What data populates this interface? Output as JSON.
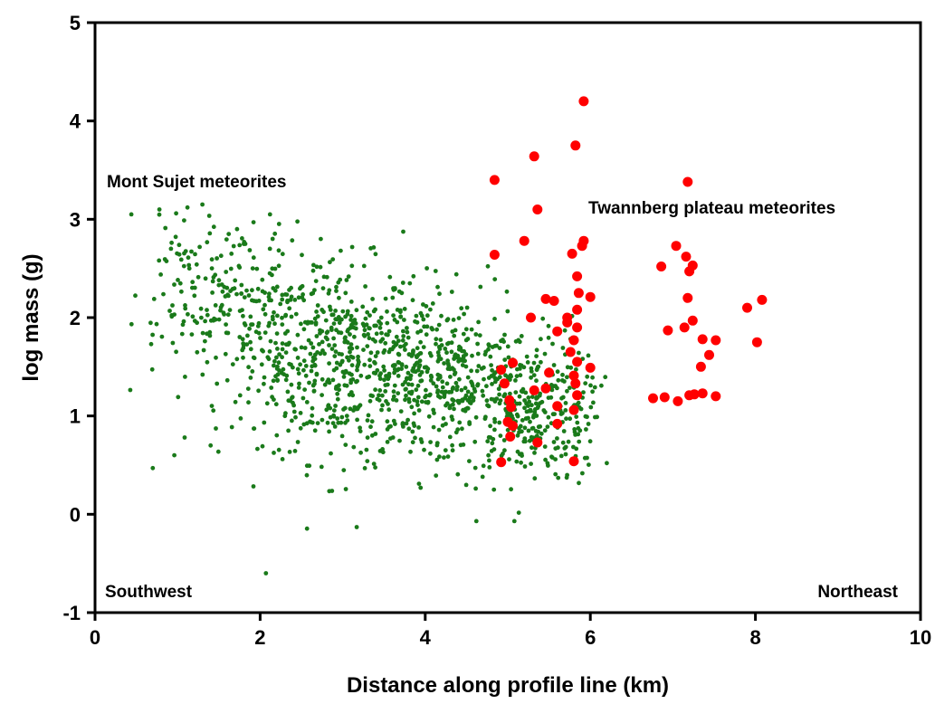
{
  "chart_data": {
    "type": "scatter",
    "title": "",
    "xlabel": "Distance along profile line (km)",
    "ylabel": "log mass (g)",
    "xlim": [
      0,
      10
    ],
    "ylim": [
      -1,
      5
    ],
    "xticks": [
      0,
      2,
      4,
      6,
      8,
      10
    ],
    "yticks": [
      -1,
      0,
      1,
      2,
      3,
      4,
      5
    ],
    "grid": false,
    "colors": {
      "mont_sujet": "#1a7a1a",
      "twannberg": "#ff0000"
    },
    "annotations": {
      "mont_sujet": "Mont Sujet meteorites",
      "twannberg": "Twannberg plateau meteorites",
      "southwest": "Southwest",
      "northeast": "Northeast"
    },
    "series": [
      {
        "key": "twannberg",
        "marker": "large-dot",
        "points": [
          [
            4.84,
            3.4
          ],
          [
            4.84,
            2.64
          ],
          [
            4.92,
            1.47
          ],
          [
            4.96,
            1.33
          ],
          [
            4.92,
            0.53
          ],
          [
            5.02,
            1.16
          ],
          [
            5.04,
            1.09
          ],
          [
            5.0,
            0.94
          ],
          [
            5.03,
            0.79
          ],
          [
            5.06,
            0.9
          ],
          [
            5.06,
            1.54
          ],
          [
            5.2,
            2.78
          ],
          [
            5.28,
            2.0
          ],
          [
            5.32,
            3.64
          ],
          [
            5.36,
            3.1
          ],
          [
            5.32,
            1.26
          ],
          [
            5.36,
            0.73
          ],
          [
            5.46,
            2.19
          ],
          [
            5.5,
            1.44
          ],
          [
            5.46,
            1.28
          ],
          [
            5.56,
            2.17
          ],
          [
            5.6,
            1.86
          ],
          [
            5.6,
            1.1
          ],
          [
            5.6,
            0.92
          ],
          [
            5.72,
            1.95
          ],
          [
            5.72,
            2.0
          ],
          [
            5.78,
            2.65
          ],
          [
            5.8,
            1.77
          ],
          [
            5.76,
            1.65
          ],
          [
            5.8,
            1.41
          ],
          [
            5.84,
            1.9
          ],
          [
            5.84,
            1.55
          ],
          [
            5.82,
            1.33
          ],
          [
            5.84,
            1.21
          ],
          [
            5.8,
            1.06
          ],
          [
            5.8,
            0.54
          ],
          [
            5.84,
            2.42
          ],
          [
            5.84,
            2.08
          ],
          [
            5.86,
            2.25
          ],
          [
            5.82,
            3.75
          ],
          [
            5.9,
            2.73
          ],
          [
            5.92,
            2.78
          ],
          [
            5.92,
            4.2
          ],
          [
            6.0,
            2.21
          ],
          [
            6.0,
            1.49
          ],
          [
            6.76,
            1.18
          ],
          [
            6.86,
            2.52
          ],
          [
            6.9,
            1.19
          ],
          [
            6.94,
            1.87
          ],
          [
            7.04,
            2.73
          ],
          [
            7.06,
            1.15
          ],
          [
            7.14,
            1.9
          ],
          [
            7.16,
            2.62
          ],
          [
            7.18,
            2.2
          ],
          [
            7.2,
            2.47
          ],
          [
            7.2,
            1.21
          ],
          [
            7.18,
            3.38
          ],
          [
            7.24,
            2.53
          ],
          [
            7.24,
            1.97
          ],
          [
            7.26,
            1.22
          ],
          [
            7.34,
            1.5
          ],
          [
            7.36,
            1.23
          ],
          [
            7.36,
            1.78
          ],
          [
            7.44,
            1.62
          ],
          [
            7.52,
            1.77
          ],
          [
            7.52,
            1.2
          ],
          [
            7.9,
            2.1
          ],
          [
            8.02,
            1.75
          ],
          [
            8.08,
            2.18
          ]
        ]
      },
      {
        "key": "mont_sujet",
        "marker": "small-dot",
        "points": [
          [
            0.44,
            3.05
          ],
          [
            0.78,
            3.1
          ],
          [
            1.12,
            3.12
          ],
          [
            1.3,
            3.15
          ],
          [
            1.62,
            2.85
          ],
          [
            1.72,
            2.9
          ],
          [
            1.82,
            2.75
          ],
          [
            2.12,
            3.05
          ],
          [
            0.68,
            1.73
          ],
          [
            0.7,
            0.47
          ],
          [
            0.96,
            0.6
          ],
          [
            1.4,
            0.7
          ],
          [
            2.07,
            -0.6
          ],
          [
            3.17,
            -0.13
          ],
          [
            4.62,
            -0.07
          ],
          [
            5.08,
            -0.07
          ],
          [
            6.2,
            0.52
          ],
          [
            1.92,
            2.97
          ],
          [
            0.92,
            2.7
          ],
          [
            2.3,
            1.0
          ]
        ],
        "cloud": [
          {
            "cx": 3.0,
            "cy": 1.55,
            "sx": 0.42,
            "sy": 0.5,
            "n": 340
          },
          {
            "cx": 3.9,
            "cy": 1.4,
            "sx": 0.38,
            "sy": 0.45,
            "n": 280
          },
          {
            "cx": 5.2,
            "cy": 1.1,
            "sx": 0.35,
            "sy": 0.38,
            "n": 280
          },
          {
            "cx": 1.7,
            "cy": 2.05,
            "sx": 0.45,
            "sy": 0.45,
            "n": 170
          },
          {
            "cx": 2.3,
            "cy": 1.75,
            "sx": 0.3,
            "sy": 0.5,
            "n": 120
          },
          {
            "cx": 4.5,
            "cy": 1.3,
            "sx": 0.3,
            "sy": 0.42,
            "n": 140
          },
          {
            "cx": 1.05,
            "cy": 2.3,
            "sx": 0.25,
            "sy": 0.4,
            "n": 45
          },
          {
            "cx": 5.85,
            "cy": 1.1,
            "sx": 0.15,
            "sy": 0.35,
            "n": 50
          }
        ]
      }
    ]
  }
}
